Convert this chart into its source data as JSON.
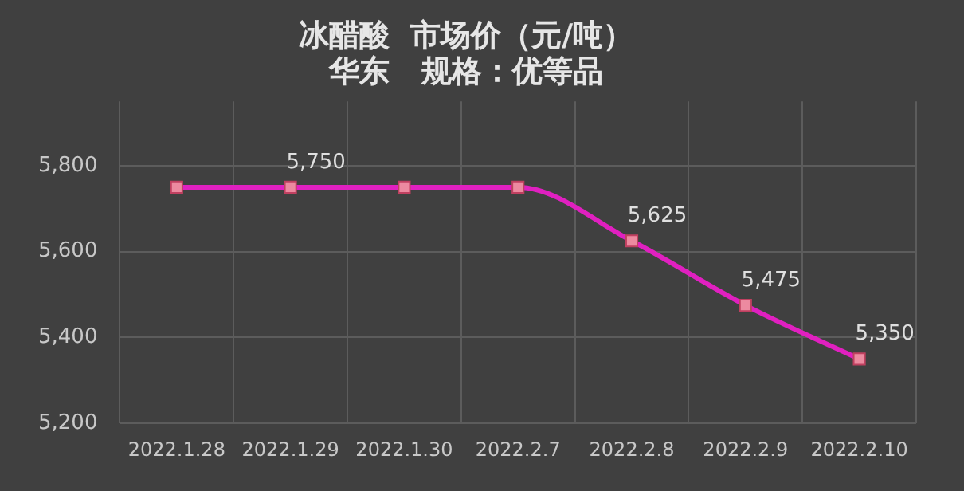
{
  "chart_data": {
    "type": "line",
    "title": "冰醋酸  市场价（元/吨）",
    "subtitle": "华东   规格：优等品",
    "categories": [
      "2022.1.28",
      "2022.1.29",
      "2022.1.30",
      "2022.2.7",
      "2022.2.8",
      "2022.2.9",
      "2022.2.10"
    ],
    "series": [
      {
        "color": "#e020c0",
        "values": [
          5750,
          5750,
          5750,
          5750,
          5625,
          5475,
          5350
        ],
        "value_labels": [
          null,
          "5,750",
          null,
          null,
          "5,625",
          "5,475",
          "5,350"
        ]
      }
    ],
    "ylim": [
      5200,
      5950
    ],
    "yticks": [
      {
        "value": 5200,
        "label": "5,200"
      },
      {
        "value": 5400,
        "label": "5,400"
      },
      {
        "value": 5600,
        "label": "5,600"
      },
      {
        "value": 5800,
        "label": "5,800"
      }
    ],
    "grid": true,
    "legend": false,
    "marker": "square",
    "line_style": "solid"
  }
}
